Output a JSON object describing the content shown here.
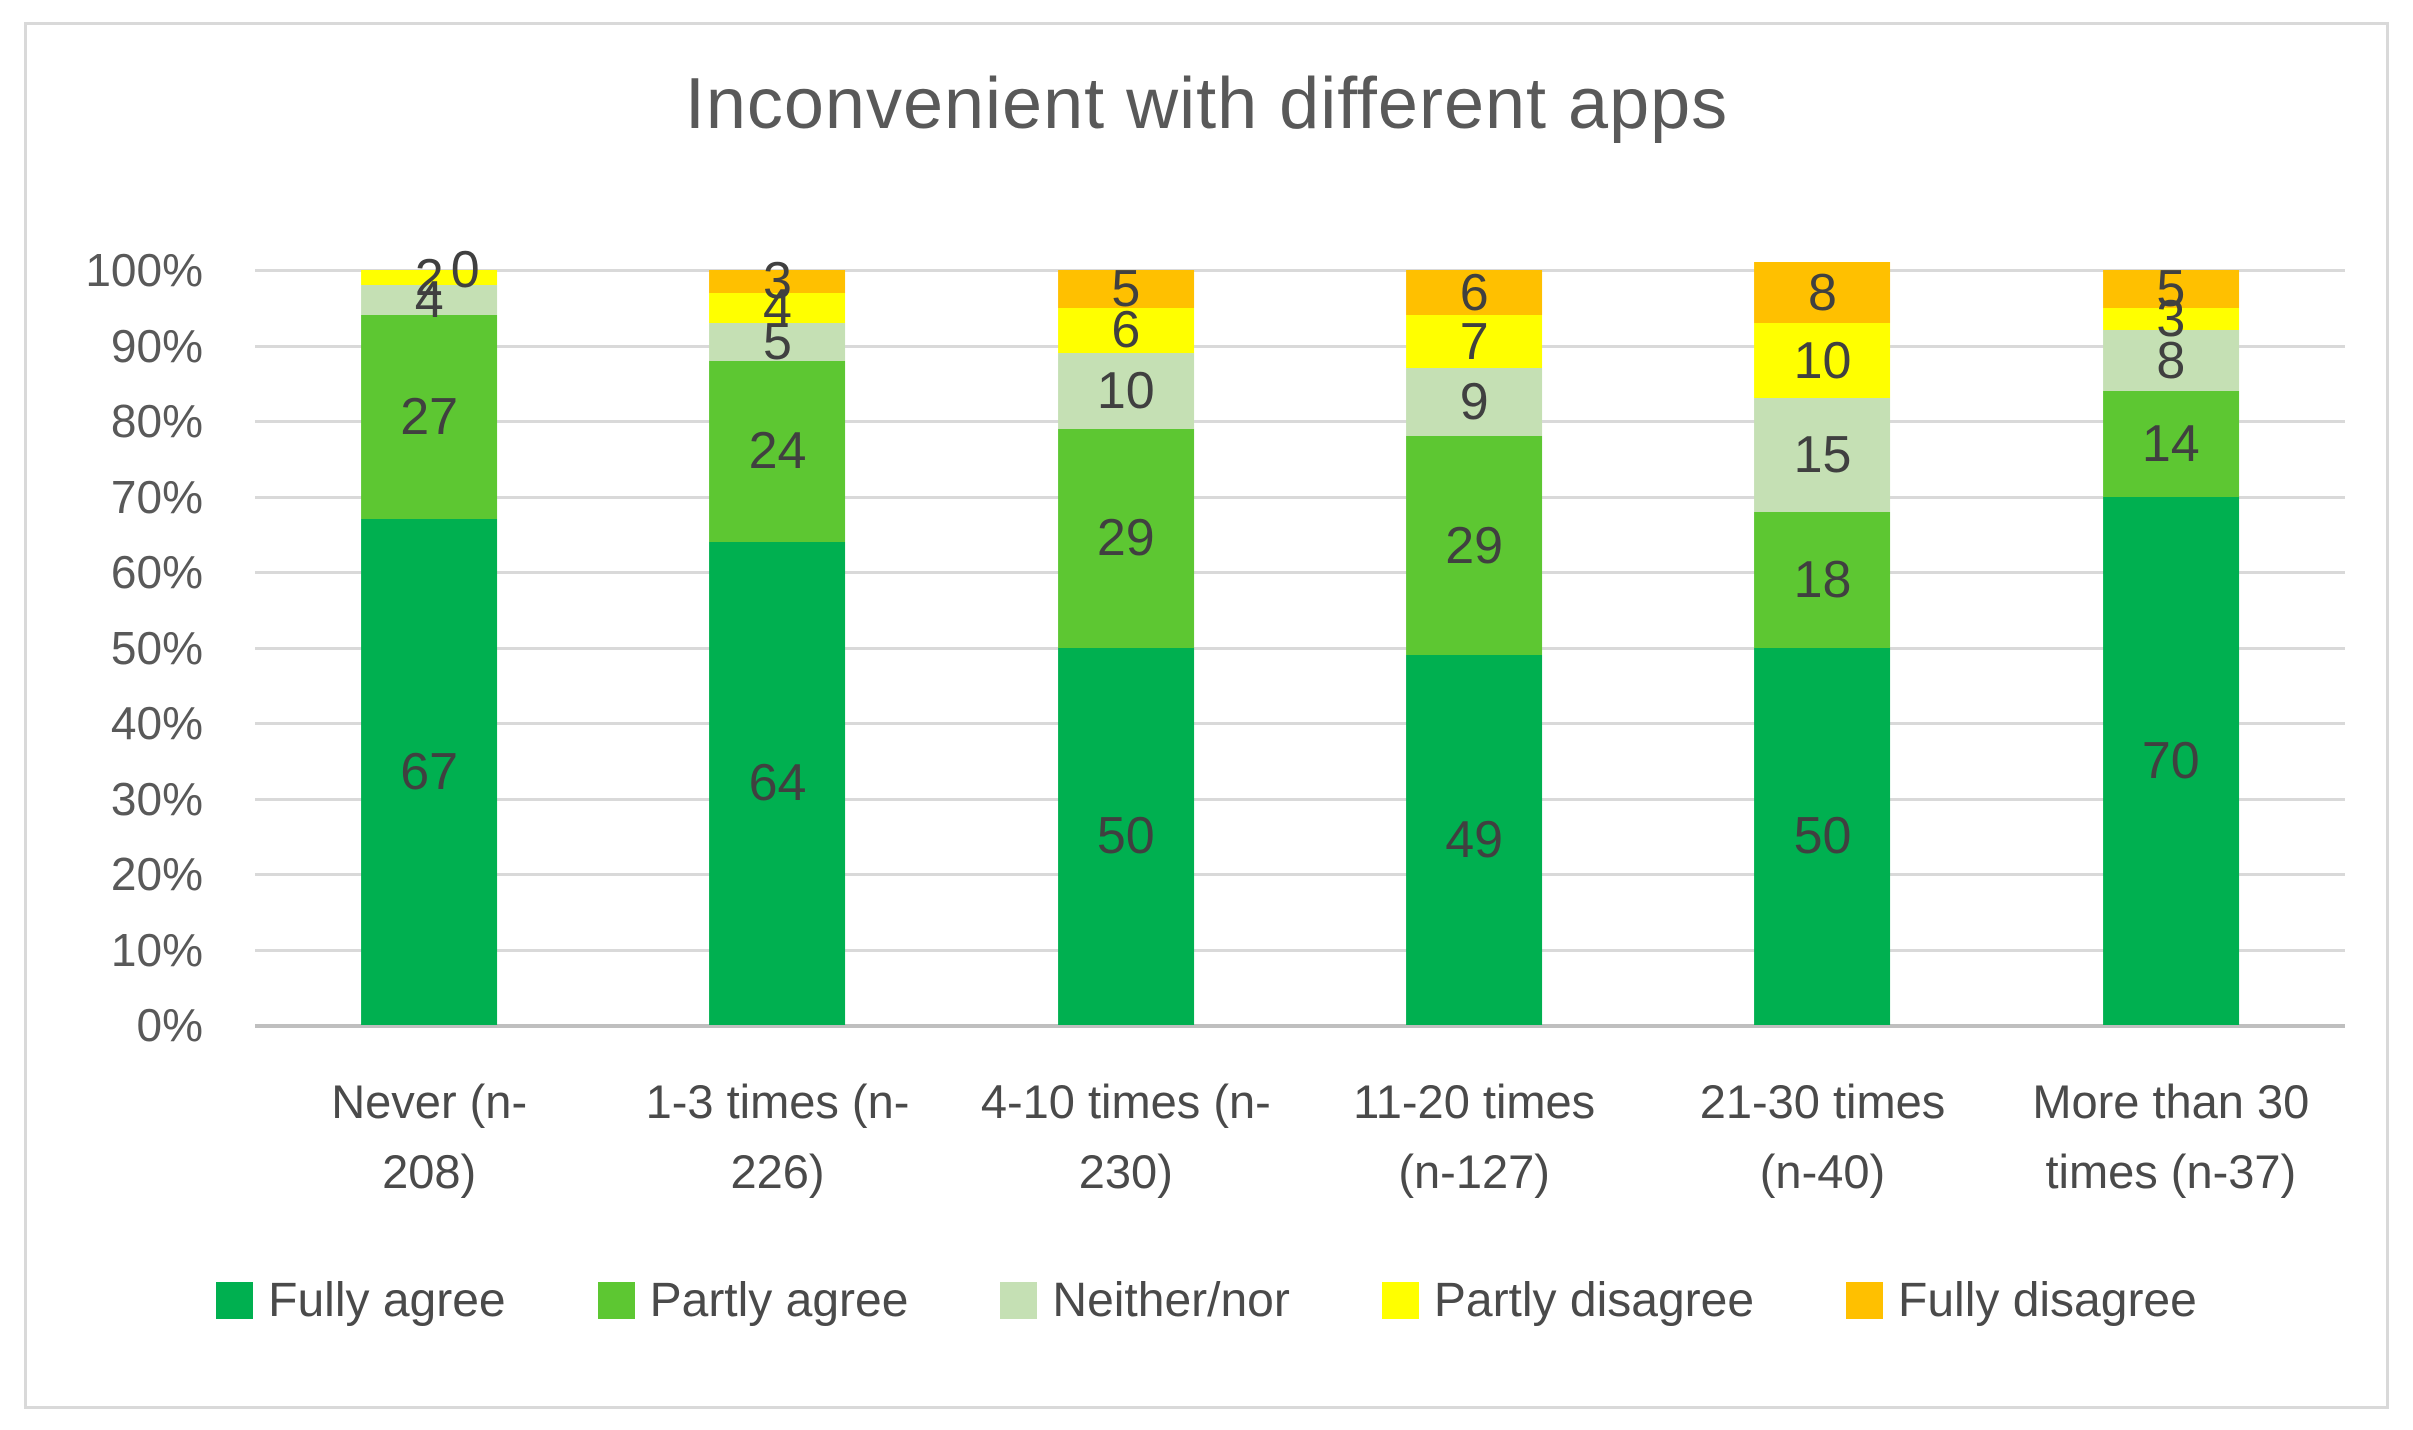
{
  "frame": {
    "background": "#FFFFFF",
    "border_color": "#D9D9D9"
  },
  "chart_data": {
    "type": "bar",
    "stacked": true,
    "percent_stacked": true,
    "title": "Inconvenient with different apps",
    "title_color": "#595959",
    "categories": [
      {
        "label": "Never (n-208)",
        "lines": [
          "Never (n-",
          "208)"
        ]
      },
      {
        "label": "1-3 times (n-226)",
        "lines": [
          "1-3 times (n-",
          "226)"
        ]
      },
      {
        "label": "4-10 times (n-230)",
        "lines": [
          "4-10 times (n-",
          "230)"
        ]
      },
      {
        "label": "11-20 times (n-127)",
        "lines": [
          "11-20 times",
          "(n-127)"
        ]
      },
      {
        "label": "21-30 times (n-40)",
        "lines": [
          "21-30 times",
          "(n-40)"
        ]
      },
      {
        "label": "More than 30 times (n-37)",
        "lines": [
          "More than 30",
          "times (n-37)"
        ]
      }
    ],
    "series": [
      {
        "name": "Fully agree",
        "color": "#00B050",
        "values": [
          67,
          64,
          50,
          49,
          50,
          70
        ]
      },
      {
        "name": "Partly agree",
        "color": "#5DC732",
        "values": [
          27,
          24,
          29,
          29,
          18,
          14
        ]
      },
      {
        "name": "Neither/nor",
        "color": "#C5E0B4",
        "values": [
          4,
          5,
          10,
          9,
          15,
          8
        ]
      },
      {
        "name": "Partly disagree",
        "color": "#FFFF00",
        "values": [
          2,
          4,
          6,
          7,
          10,
          3
        ]
      },
      {
        "name": "Fully disagree",
        "color": "#FFC000",
        "values": [
          0,
          3,
          5,
          6,
          8,
          5
        ]
      }
    ],
    "y_axis": {
      "ticks": [
        "0%",
        "10%",
        "20%",
        "30%",
        "40%",
        "50%",
        "60%",
        "70%",
        "80%",
        "90%",
        "100%"
      ],
      "min": 0,
      "max": 100,
      "grid": true,
      "grid_color": "#D9D9D9",
      "axis_line_color": "#BFBFBF",
      "tick_color": "#595959"
    },
    "data_label_color": "#404040",
    "show_data_labels": true,
    "label_offset_overrides": [
      {
        "series_index": 4,
        "category_index": 0,
        "dx": 36,
        "dy": 0
      }
    ],
    "legend": {
      "position": "bottom",
      "text_color": "#4a4a4a"
    }
  }
}
